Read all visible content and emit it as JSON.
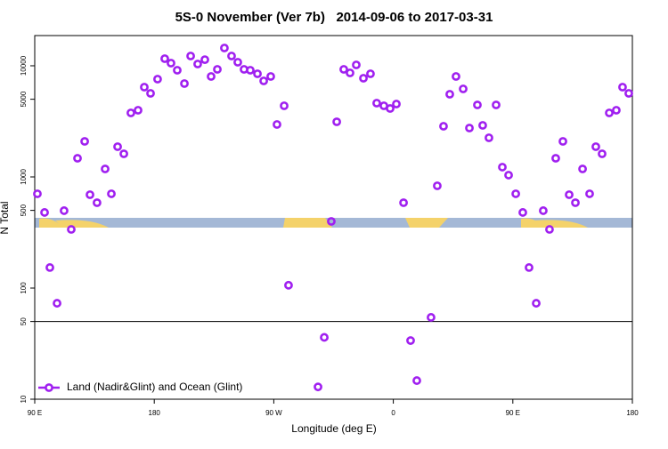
{
  "chart_data": {
    "type": "scatter",
    "title": "5S-0 November (Ver 7b)   2014-09-06 to 2017-03-31",
    "x_label": "Longitude (deg E)",
    "y_label": "N Total",
    "log_y": true,
    "legend": "bottom-left",
    "reference_line": 50,
    "xlim": [
      90,
      540
    ],
    "ylim": [
      10,
      18700
    ],
    "xticks": [
      {
        "value": 90,
        "label": "90 E"
      },
      180,
      {
        "value": 270,
        "label": "90 W"
      },
      {
        "value": 360,
        "label": "0"
      },
      {
        "value": 450,
        "label": "90 E"
      },
      {
        "value": 540,
        "label": "180"
      }
    ],
    "yticks": [
      10,
      50,
      100,
      500,
      1000,
      5000,
      10000
    ],
    "series": [
      {
        "name": "Land (Nadir&Glint) and Ocean (Glint)",
        "color": "#a020f0",
        "x": [
          92,
          97.4,
          101.4,
          106.8,
          112.1,
          117.5,
          122.2,
          127.6,
          131.6,
          136.9,
          143,
          147.7,
          152.4,
          157.1,
          162.4,
          167.8,
          172.5,
          177.2,
          182.5,
          187.9,
          192.6,
          197.3,
          202.7,
          207.4,
          212.7,
          218.1,
          222.8,
          227.5,
          232.8,
          238.2,
          242.9,
          247.6,
          252.3,
          257.7,
          262.4,
          267.7,
          272.4,
          277.8,
          281.1,
          303.3,
          308,
          313.3,
          317.4,
          322.7,
          327.4,
          332.1,
          337.5,
          342.8,
          347.5,
          352.9,
          357.6,
          362.3,
          367.7,
          373,
          377.7,
          388.4,
          393.1,
          397.8,
          402.5,
          407.2,
          412.6,
          417.3,
          423.3,
          427.3,
          432,
          437.4,
          442.1,
          446.8,
          452.2,
          457.5,
          462.2,
          467.6,
          472.9,
          477.6,
          482.3,
          487.7,
          492.4,
          497.1,
          502.5,
          507.8,
          512.5,
          517.2,
          522.6,
          527.9,
          532.6,
          537.3
        ],
        "values": [
          705,
          479,
          153,
          73,
          497,
          337,
          1472,
          2089,
          692,
          586,
          1180,
          705,
          1871,
          1614,
          3767,
          3981,
          6427,
          5649,
          7586,
          11588,
          10568,
          9120,
          6918,
          12246,
          10375,
          11350,
          8017,
          9290,
          14454,
          12246,
          10765,
          9290,
          9120,
          8472,
          7311,
          8017,
          2965,
          4365,
          106,
          12.9,
          36,
          398,
          3133,
          9290,
          8630,
          10186,
          7727,
          8472,
          4613,
          4365,
          4130,
          4529,
          586,
          33.7,
          14.7,
          54.5,
          832,
          2858,
          5546,
          8017,
          6194,
          2754,
          4446,
          2911,
          2249,
          4446,
          1225,
          1038,
          705,
          479,
          153,
          73,
          497,
          337,
          1472,
          2089,
          692,
          586,
          1180,
          705,
          1871,
          1614,
          3767,
          3981,
          6427,
          5649
        ]
      }
    ]
  }
}
